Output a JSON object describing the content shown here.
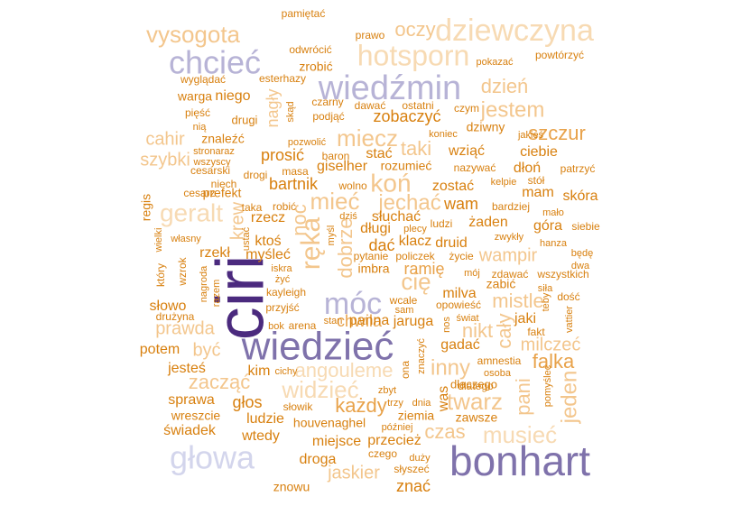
{
  "palette": {
    "dark_purple": "#4b2a7e",
    "medium_purple": "#7f72ab",
    "light_purple": "#b7b3d6",
    "pale_purple": "#d3d5ec",
    "dark_orange": "#d8800f",
    "orange": "#e8a24a",
    "light_orange": "#f3c68d",
    "pale_orange": "#f7dab3"
  },
  "words": [
    {
      "text": "ciri",
      "color": "#4b2a7e"
    },
    {
      "text": "bonhart",
      "color": "#7f72ab"
    },
    {
      "text": "wiedzieć",
      "color": "#7f72ab"
    },
    {
      "text": "wiedźmin",
      "color": "#b7b3d6"
    },
    {
      "text": "chcieć",
      "color": "#b7b3d6"
    },
    {
      "text": "móc",
      "color": "#b7b3d6"
    },
    {
      "text": "głowa",
      "color": "#d3d5ec"
    },
    {
      "text": "dziewczyna",
      "color": "#f7dab3"
    },
    {
      "text": "hotsporn",
      "color": "#f7dab3"
    },
    {
      "text": "vysogota",
      "color": "#f3c68d"
    },
    {
      "text": "geralt",
      "color": "#f7dab3"
    },
    {
      "text": "ręka",
      "color": "#f3c68d"
    },
    {
      "text": "koń",
      "color": "#f3c68d"
    },
    {
      "text": "mieć",
      "color": "#f3c68d"
    },
    {
      "text": "miecz",
      "color": "#f3c68d"
    },
    {
      "text": "jechać",
      "color": "#f3c68d"
    },
    {
      "text": "widzieć",
      "color": "#f7dab3"
    },
    {
      "text": "angouleme",
      "color": "#f7dab3"
    },
    {
      "text": "musieć",
      "color": "#f7dab3"
    },
    {
      "text": "twarz",
      "color": "#f3c68d"
    },
    {
      "text": "czas",
      "color": "#f3c68d"
    },
    {
      "text": "oczy",
      "color": "#f3c68d"
    },
    {
      "text": "jestem",
      "color": "#f3c68d"
    },
    {
      "text": "dzień",
      "color": "#f3c68d"
    },
    {
      "text": "szczur",
      "color": "#e8a24a"
    },
    {
      "text": "cię",
      "color": "#f3c68d"
    },
    {
      "text": "inny",
      "color": "#f3c68d"
    },
    {
      "text": "pani",
      "color": "#f3c68d"
    },
    {
      "text": "jeden",
      "color": "#f3c68d"
    },
    {
      "text": "falka",
      "color": "#e8a24a"
    },
    {
      "text": "mistle",
      "color": "#f3c68d"
    },
    {
      "text": "cały",
      "color": "#f3c68d"
    },
    {
      "text": "nikt",
      "color": "#f3c68d"
    },
    {
      "text": "wampir",
      "color": "#f3c68d"
    },
    {
      "text": "dobrze",
      "color": "#f3c68d"
    },
    {
      "text": "noc",
      "color": "#f3c68d"
    },
    {
      "text": "taki",
      "color": "#f3c68d"
    },
    {
      "text": "cahir",
      "color": "#f3c68d"
    },
    {
      "text": "szybki",
      "color": "#f3c68d"
    },
    {
      "text": "prawda",
      "color": "#f3c68d"
    },
    {
      "text": "zacząć",
      "color": "#f3c68d"
    },
    {
      "text": "jaskier",
      "color": "#f3c68d"
    },
    {
      "text": "każdy",
      "color": "#e8a24a"
    },
    {
      "text": "milczeć",
      "color": "#f3c68d"
    },
    {
      "text": "być",
      "color": "#f3c68d"
    },
    {
      "text": "krew",
      "color": "#f3c68d"
    },
    {
      "text": "nagły",
      "color": "#f3c68d"
    },
    {
      "text": "chwila",
      "color": "#e8a24a"
    },
    {
      "text": "ramię",
      "color": "#e8a24a"
    },
    {
      "text": "słowo",
      "color": "#d8800f"
    },
    {
      "text": "potem",
      "color": "#d8800f"
    },
    {
      "text": "jesteś",
      "color": "#d8800f"
    },
    {
      "text": "sprawa",
      "color": "#d8800f"
    },
    {
      "text": "wreszcie",
      "color": "#d8800f"
    },
    {
      "text": "świadek",
      "color": "#d8800f"
    },
    {
      "text": "głos",
      "color": "#d8800f"
    },
    {
      "text": "ludzie",
      "color": "#d8800f"
    },
    {
      "text": "wtedy",
      "color": "#d8800f"
    },
    {
      "text": "droga",
      "color": "#d8800f"
    },
    {
      "text": "znowu",
      "color": "#d8800f"
    },
    {
      "text": "miejsce",
      "color": "#d8800f"
    },
    {
      "text": "znać",
      "color": "#d8800f"
    },
    {
      "text": "przecież",
      "color": "#d8800f"
    },
    {
      "text": "zawsze",
      "color": "#d8800f"
    },
    {
      "text": "ziemia",
      "color": "#d8800f"
    },
    {
      "text": "was",
      "color": "#d8800f"
    },
    {
      "text": "houvenaghel",
      "color": "#d8800f"
    },
    {
      "text": "gadać",
      "color": "#d8800f"
    },
    {
      "text": "jaruga",
      "color": "#d8800f"
    },
    {
      "text": "panna",
      "color": "#d8800f"
    },
    {
      "text": "milva",
      "color": "#d8800f"
    },
    {
      "text": "żaden",
      "color": "#d8800f"
    },
    {
      "text": "druid",
      "color": "#d8800f"
    },
    {
      "text": "klacz",
      "color": "#d8800f"
    },
    {
      "text": "dać",
      "color": "#d8800f"
    },
    {
      "text": "długi",
      "color": "#d8800f"
    },
    {
      "text": "słuchać",
      "color": "#d8800f"
    },
    {
      "text": "wam",
      "color": "#d8800f"
    },
    {
      "text": "zostać",
      "color": "#d8800f"
    },
    {
      "text": "bartnik",
      "color": "#d8800f"
    },
    {
      "text": "prosić",
      "color": "#d8800f"
    },
    {
      "text": "giselher",
      "color": "#d8800f"
    },
    {
      "text": "stać",
      "color": "#d8800f"
    },
    {
      "text": "rozumieć",
      "color": "#d8800f"
    },
    {
      "text": "wziąć",
      "color": "#d8800f"
    },
    {
      "text": "ciebie",
      "color": "#d8800f"
    },
    {
      "text": "dłoń",
      "color": "#d8800f"
    },
    {
      "text": "mam",
      "color": "#d8800f"
    },
    {
      "text": "skóra",
      "color": "#d8800f"
    },
    {
      "text": "góra",
      "color": "#d8800f"
    },
    {
      "text": "zobaczyć",
      "color": "#d8800f"
    },
    {
      "text": "dziwny",
      "color": "#d8800f"
    },
    {
      "text": "rzecz",
      "color": "#d8800f"
    },
    {
      "text": "ktoś",
      "color": "#d8800f"
    },
    {
      "text": "myśleć",
      "color": "#d8800f"
    },
    {
      "text": "rzekł",
      "color": "#d8800f"
    },
    {
      "text": "regis",
      "color": "#d8800f"
    },
    {
      "text": "prefekt",
      "color": "#d8800f"
    },
    {
      "text": "zrobić",
      "color": "#d8800f"
    },
    {
      "text": "niego",
      "color": "#d8800f"
    },
    {
      "text": "warga",
      "color": "#d8800f"
    },
    {
      "text": "znaleźć",
      "color": "#d8800f"
    },
    {
      "text": "jaki",
      "color": "#d8800f"
    },
    {
      "text": "kim",
      "color": "#d8800f"
    },
    {
      "text": "dłaczego",
      "color": "#d8800f"
    },
    {
      "text": "zabić",
      "color": "#d8800f"
    },
    {
      "text": "imbra",
      "color": "#d8800f"
    },
    {
      "text": "kayleigh",
      "color": "#d8800f"
    },
    {
      "text": "pamiętać",
      "color": "#d8800f"
    },
    {
      "text": "prawo",
      "color": "#d8800f"
    },
    {
      "text": "odwrócić",
      "color": "#d8800f"
    },
    {
      "text": "pokazać",
      "color": "#d8800f"
    },
    {
      "text": "powtórzyć",
      "color": "#d8800f"
    },
    {
      "text": "wyglądać",
      "color": "#d8800f"
    },
    {
      "text": "esterhazy",
      "color": "#d8800f"
    },
    {
      "text": "pięść",
      "color": "#d8800f"
    },
    {
      "text": "nią",
      "color": "#d8800f"
    },
    {
      "text": "drugi",
      "color": "#d8800f"
    },
    {
      "text": "skąd",
      "color": "#d8800f"
    },
    {
      "text": "czarny",
      "color": "#d8800f"
    },
    {
      "text": "dawać",
      "color": "#d8800f"
    },
    {
      "text": "ostatni",
      "color": "#d8800f"
    },
    {
      "text": "czym",
      "color": "#d8800f"
    },
    {
      "text": "podjąć",
      "color": "#d8800f"
    },
    {
      "text": "koniec",
      "color": "#d8800f"
    },
    {
      "text": "jakieś",
      "color": "#d8800f"
    },
    {
      "text": "pozwolić",
      "color": "#d8800f"
    },
    {
      "text": "stronaraz",
      "color": "#d8800f"
    },
    {
      "text": "wszyscy",
      "color": "#d8800f"
    },
    {
      "text": "cesarski",
      "color": "#d8800f"
    },
    {
      "text": "drogi",
      "color": "#d8800f"
    },
    {
      "text": "masa",
      "color": "#d8800f"
    },
    {
      "text": "baron",
      "color": "#d8800f"
    },
    {
      "text": "nazywać",
      "color": "#d8800f"
    },
    {
      "text": "patrzyć",
      "color": "#d8800f"
    },
    {
      "text": "niech",
      "color": "#d8800f"
    },
    {
      "text": "wolno",
      "color": "#d8800f"
    },
    {
      "text": "kelpie",
      "color": "#d8800f"
    },
    {
      "text": "stół",
      "color": "#d8800f"
    },
    {
      "text": "cesarz",
      "color": "#d8800f"
    },
    {
      "text": "taka",
      "color": "#d8800f"
    },
    {
      "text": "robić",
      "color": "#d8800f"
    },
    {
      "text": "bardziej",
      "color": "#d8800f"
    },
    {
      "text": "mało",
      "color": "#d8800f"
    },
    {
      "text": "dziś",
      "color": "#d8800f"
    },
    {
      "text": "ludzi",
      "color": "#d8800f"
    },
    {
      "text": "siebie",
      "color": "#d8800f"
    },
    {
      "text": "plecy",
      "color": "#d8800f"
    },
    {
      "text": "zwykły",
      "color": "#d8800f"
    },
    {
      "text": "własny",
      "color": "#d8800f"
    },
    {
      "text": "ustać",
      "color": "#d8800f"
    },
    {
      "text": "myśl",
      "color": "#d8800f"
    },
    {
      "text": "hanza",
      "color": "#d8800f"
    },
    {
      "text": "wielki",
      "color": "#d8800f"
    },
    {
      "text": "pytanie",
      "color": "#d8800f"
    },
    {
      "text": "policzek",
      "color": "#d8800f"
    },
    {
      "text": "życie",
      "color": "#d8800f"
    },
    {
      "text": "będę",
      "color": "#d8800f"
    },
    {
      "text": "dwa",
      "color": "#d8800f"
    },
    {
      "text": "który",
      "color": "#d8800f"
    },
    {
      "text": "wzrok",
      "color": "#d8800f"
    },
    {
      "text": "iskra",
      "color": "#d8800f"
    },
    {
      "text": "żyć",
      "color": "#d8800f"
    },
    {
      "text": "mój",
      "color": "#d8800f"
    },
    {
      "text": "zdawać",
      "color": "#d8800f"
    },
    {
      "text": "wszystkich",
      "color": "#d8800f"
    },
    {
      "text": "nagroda",
      "color": "#d8800f"
    },
    {
      "text": "siła",
      "color": "#d8800f"
    },
    {
      "text": "razem",
      "color": "#d8800f"
    },
    {
      "text": "wcale",
      "color": "#d8800f"
    },
    {
      "text": "dość",
      "color": "#d8800f"
    },
    {
      "text": "przyjść",
      "color": "#d8800f"
    },
    {
      "text": "sam",
      "color": "#d8800f"
    },
    {
      "text": "opowieść",
      "color": "#d8800f"
    },
    {
      "text": "teby",
      "color": "#d8800f"
    },
    {
      "text": "drużyna",
      "color": "#d8800f"
    },
    {
      "text": "nos",
      "color": "#d8800f"
    },
    {
      "text": "świat",
      "color": "#d8800f"
    },
    {
      "text": "vattier",
      "color": "#d8800f"
    },
    {
      "text": "bok",
      "color": "#d8800f"
    },
    {
      "text": "arena",
      "color": "#d8800f"
    },
    {
      "text": "stan",
      "color": "#d8800f"
    },
    {
      "text": "fakt",
      "color": "#d8800f"
    },
    {
      "text": "amnestia",
      "color": "#d8800f"
    },
    {
      "text": "ona",
      "color": "#d8800f"
    },
    {
      "text": "znaczyć",
      "color": "#d8800f"
    },
    {
      "text": "osoba",
      "color": "#d8800f"
    },
    {
      "text": "pomyśleć",
      "color": "#d8800f"
    },
    {
      "text": "cichy",
      "color": "#d8800f"
    },
    {
      "text": "zbyt",
      "color": "#d8800f"
    },
    {
      "text": "dlatego",
      "color": "#d8800f"
    },
    {
      "text": "słowik",
      "color": "#d8800f"
    },
    {
      "text": "trzy",
      "color": "#d8800f"
    },
    {
      "text": "dnia",
      "color": "#d8800f"
    },
    {
      "text": "później",
      "color": "#d8800f"
    },
    {
      "text": "czego",
      "color": "#d8800f"
    },
    {
      "text": "duży",
      "color": "#d8800f"
    },
    {
      "text": "słyszeć",
      "color": "#d8800f"
    }
  ]
}
